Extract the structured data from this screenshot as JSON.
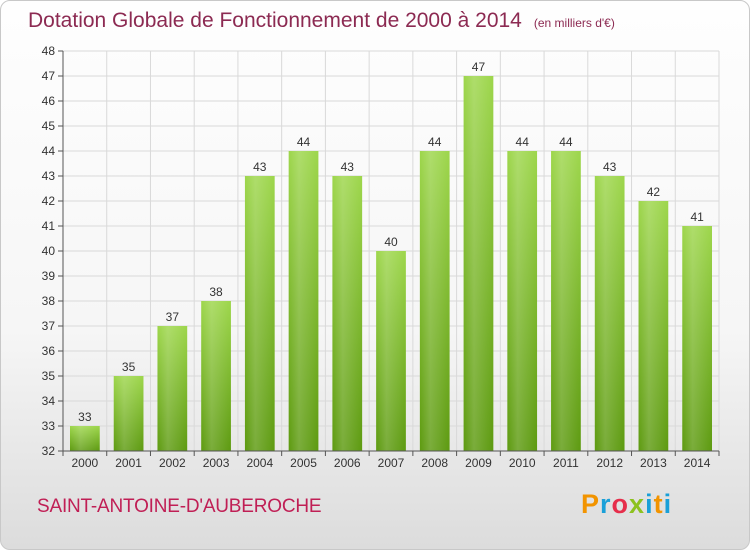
{
  "header": {
    "title": "Dotation Globale de Fonctionnement de 2000 à 2014",
    "subtitle": "(en milliers d'€)"
  },
  "footer": {
    "commune": "SAINT-ANTOINE-D'AUBEROCHE",
    "logo_letters": [
      "P",
      "r",
      "o",
      "x",
      "i",
      "t",
      "i"
    ],
    "logo_colors": [
      "#f29400",
      "#1aa0d8",
      "#e62e4b",
      "#8dc21f",
      "#1aa0d8",
      "#f29400",
      "#1aa0d8"
    ]
  },
  "colors": {
    "bar_top": "#9dd64b",
    "bar_bottom": "#5d9a10",
    "grid": "#d9d9d9",
    "axis": "#555555"
  },
  "chart_data": {
    "type": "bar",
    "categories": [
      "2000",
      "2001",
      "2002",
      "2003",
      "2004",
      "2005",
      "2006",
      "2007",
      "2008",
      "2009",
      "2010",
      "2011",
      "2012",
      "2013",
      "2014"
    ],
    "values": [
      33,
      35,
      37,
      38,
      43,
      44,
      43,
      40,
      44,
      47,
      44,
      44,
      43,
      42,
      41
    ],
    "yticks": [
      32,
      33,
      34,
      35,
      36,
      37,
      38,
      39,
      40,
      41,
      42,
      43,
      44,
      45,
      46,
      47,
      48
    ],
    "ylim": [
      32,
      48
    ],
    "grid": true
  }
}
